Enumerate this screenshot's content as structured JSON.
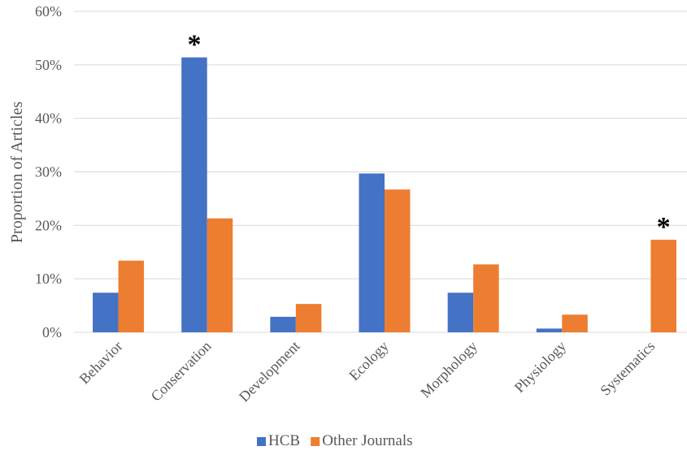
{
  "chart_data": {
    "type": "bar",
    "title": "",
    "xlabel": "",
    "ylabel": "Proportion of Articles",
    "categories": [
      "Behavior",
      "Conservation",
      "Development",
      "Ecology",
      "Morphology",
      "Physiology",
      "Systematics"
    ],
    "series": [
      {
        "name": "HCB",
        "color": "#4472C4",
        "values": [
          7.4,
          51.4,
          2.9,
          29.7,
          7.4,
          0.7,
          0
        ]
      },
      {
        "name": "Other Journals",
        "color": "#ED7D31",
        "values": [
          13.4,
          21.3,
          5.3,
          26.7,
          12.7,
          3.3,
          17.3
        ]
      }
    ],
    "ylim": [
      0,
      60
    ],
    "yticks": [
      0,
      10,
      20,
      30,
      40,
      50,
      60
    ],
    "ytick_suffix": "%",
    "grid": true,
    "legend_position": "bottom",
    "significance_marker": "*",
    "significant_categories": [
      "Conservation",
      "Systematics"
    ]
  }
}
